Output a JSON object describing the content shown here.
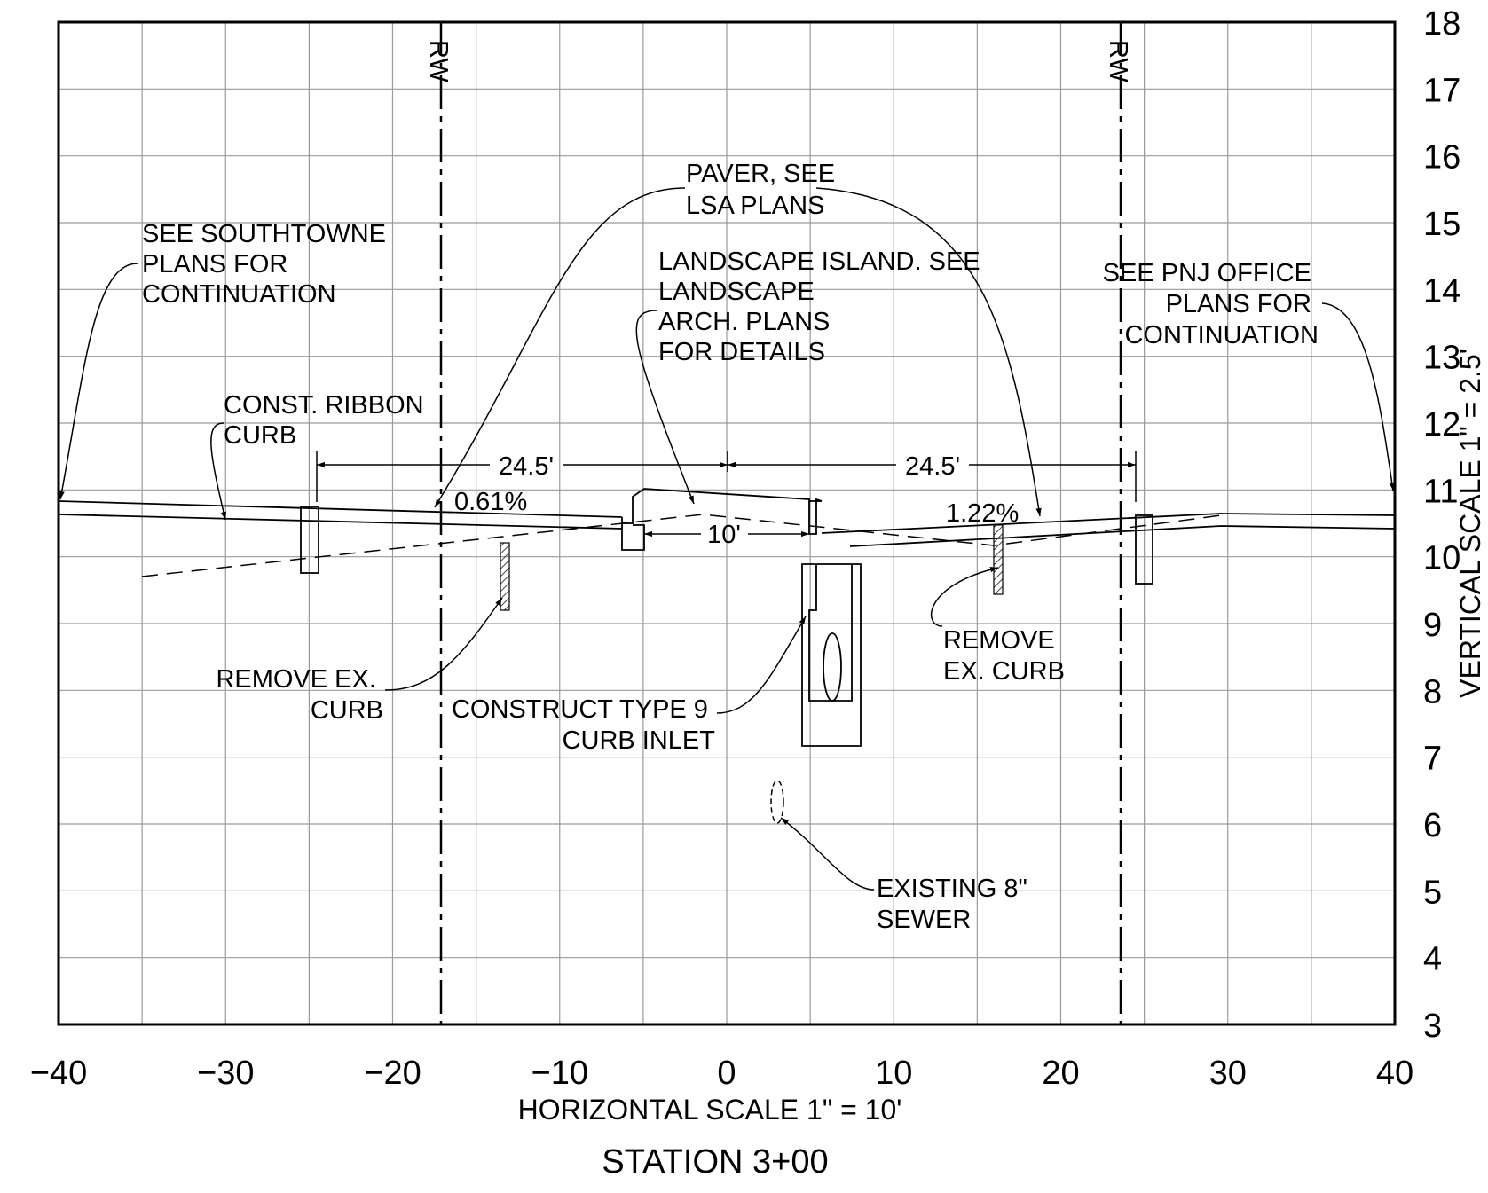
{
  "station_title": "STATION 3+00",
  "horizontal_scale": "HORIZONTAL SCALE 1\" = 10'",
  "vertical_scale": "VERTICAL SCALE 1\" = 2.5'",
  "x_axis": {
    "ticks": [
      -40,
      -30,
      -20,
      -10,
      0,
      10,
      20,
      30,
      40
    ],
    "range": [
      -40,
      40
    ]
  },
  "y_axis": {
    "ticks": [
      3,
      4,
      5,
      6,
      7,
      8,
      9,
      10,
      11,
      12,
      13,
      14,
      15,
      16,
      17,
      18
    ],
    "range": [
      3,
      18
    ]
  },
  "row_label": "RW",
  "right_of_way": [
    -17,
    23.8
  ],
  "dimensions": {
    "left": "24.5'",
    "right": "24.5'",
    "island": "10'"
  },
  "slopes": {
    "left": "0.61%",
    "right": "1.22%"
  },
  "notes": {
    "southtowne": [
      "SEE SOUTHTOWNE",
      "PLANS FOR",
      "CONTINUATION"
    ],
    "paver": [
      "PAVER, SEE",
      "LSA PLANS"
    ],
    "landscape": [
      "LANDSCAPE ISLAND. SEE",
      "LANDSCAPE",
      "ARCH. PLANS",
      "FOR DETAILS"
    ],
    "pnj": [
      "SEE PNJ OFFICE",
      "PLANS FOR",
      "CONTINUATION"
    ],
    "ribbon_curb": [
      "CONST. RIBBON",
      "CURB"
    ],
    "remove_left": [
      "REMOVE EX.",
      "CURB"
    ],
    "curb_inlet": [
      "CONSTRUCT TYPE 9",
      "CURB INLET"
    ],
    "remove_right": [
      "REMOVE",
      "EX. CURB"
    ],
    "sewer": [
      "EXISTING 8\"",
      "SEWER"
    ]
  }
}
